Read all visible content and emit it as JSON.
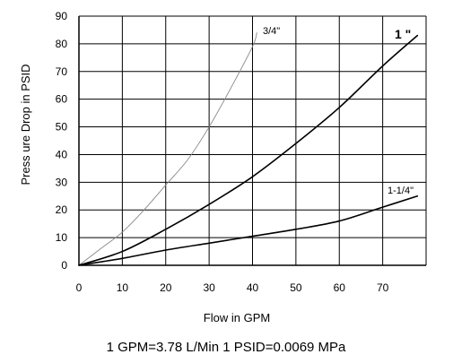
{
  "chart_data": {
    "type": "line",
    "xlabel": "Flow in GPM",
    "ylabel": "Press ure Drop in PSID",
    "xlim": [
      0,
      80
    ],
    "ylim": [
      0,
      90
    ],
    "x_ticks": [
      0,
      10,
      20,
      30,
      40,
      50,
      60,
      70
    ],
    "y_ticks": [
      0,
      10,
      20,
      30,
      40,
      50,
      60,
      70,
      80,
      90
    ],
    "x_tick_labels": [
      "0",
      "10",
      "20",
      "30",
      "40",
      "50",
      "60",
      "70"
    ],
    "y_tick_labels": [
      "0",
      "10",
      "20",
      "30",
      "40",
      "50",
      "60",
      "70",
      "80",
      "90"
    ],
    "grid": true,
    "legend": "none",
    "series": [
      {
        "name": "3/4\"",
        "color": "#888888",
        "points": [
          [
            0,
            0
          ],
          [
            5,
            6
          ],
          [
            10,
            12
          ],
          [
            15,
            20
          ],
          [
            20,
            29
          ],
          [
            25,
            38
          ],
          [
            30,
            50
          ],
          [
            35,
            64
          ],
          [
            40,
            79
          ],
          [
            41,
            84
          ]
        ]
      },
      {
        "name": "1 \"",
        "color": "#000000",
        "points": [
          [
            0,
            0
          ],
          [
            10,
            5
          ],
          [
            20,
            13
          ],
          [
            30,
            22
          ],
          [
            40,
            32
          ],
          [
            50,
            44
          ],
          [
            60,
            57
          ],
          [
            70,
            72
          ],
          [
            78,
            83
          ]
        ]
      },
      {
        "name": "1-1/4\"",
        "color": "#000000",
        "points": [
          [
            0,
            0
          ],
          [
            10,
            2.5
          ],
          [
            20,
            5.5
          ],
          [
            30,
            8
          ],
          [
            40,
            10.5
          ],
          [
            50,
            13
          ],
          [
            60,
            16
          ],
          [
            70,
            21
          ],
          [
            78,
            25
          ]
        ]
      }
    ]
  },
  "footer": "1 GPM=3.78 L/Min 1 PSID=0.0069 MPa"
}
